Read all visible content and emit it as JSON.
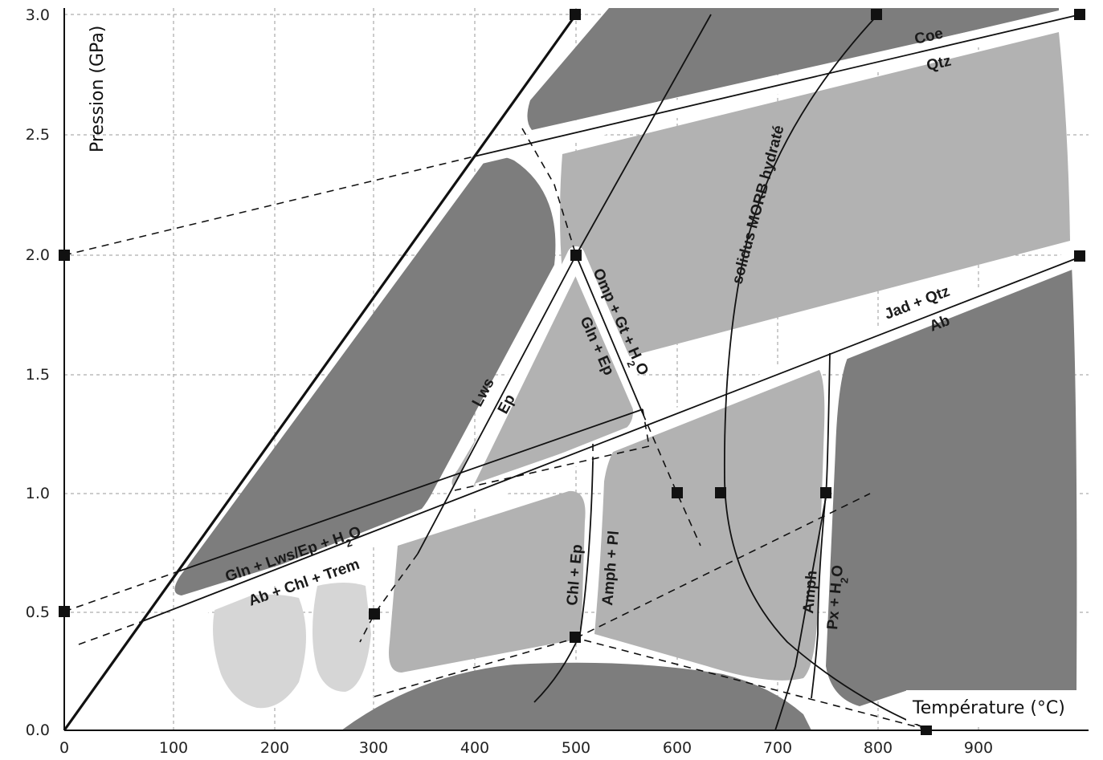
{
  "axes": {
    "y_title": "Pression (GPa)",
    "x_title": "Température (°C)",
    "y_ticks": [
      "0.0",
      "0.5",
      "1.0",
      "1.5",
      "2.0",
      "2.5",
      "3.0"
    ],
    "x_ticks": [
      "0",
      "100",
      "200",
      "300",
      "400",
      "500",
      "600",
      "700",
      "800",
      "900"
    ]
  },
  "reactions": {
    "coe": "Coe",
    "qtz": "Qtz",
    "jad_qtz": "Jad + Qtz",
    "ab": "Ab",
    "solidus": "solidus MORB hydraté",
    "omp": "Omp + Gt + H",
    "gln_ep": "Gln + Ep",
    "lws": "Lws",
    "ep": "Ep",
    "gln_lws": "Gln + Lws/Ep + H",
    "ab_chl": "Ab + Chl + Trem",
    "chl_ep": "Chl + Ep",
    "amph_pl": "Amph + Pl",
    "amph": "Amph",
    "px": "Px + H",
    "sub2": "2",
    "o": "O"
  },
  "colors": {
    "dark_field": "#7d7d7d",
    "mid_field": "#b2b2b2",
    "light_field": "#d6d6d6",
    "lines": "#111111"
  }
}
